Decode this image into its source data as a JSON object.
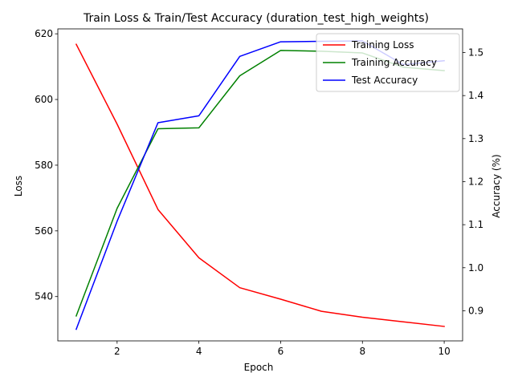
{
  "chart_data": {
    "type": "line",
    "title": "Train Loss & Train/Test Accuracy (duration_test_high_weights)",
    "xlabel": "Epoch",
    "ylabel_left": "Loss",
    "ylabel_right": "Accuracy (%)",
    "xlim": [
      0.55,
      10.45
    ],
    "ylim_left": [
      526.5,
      621.5
    ],
    "ylim_right": [
      0.83,
      1.555
    ],
    "x_ticks": [
      2,
      4,
      6,
      8,
      10
    ],
    "y_left_ticks": [
      540,
      560,
      580,
      600,
      620
    ],
    "y_right_ticks": [
      0.9,
      1.0,
      1.1,
      1.2,
      1.3,
      1.4,
      1.5
    ],
    "x_tick_labels": [
      "2",
      "4",
      "6",
      "8",
      "10"
    ],
    "y_left_tick_labels": [
      "540",
      "560",
      "580",
      "600",
      "620"
    ],
    "y_right_tick_labels": [
      "0.9",
      "1.0",
      "1.1",
      "1.2",
      "1.3",
      "1.4",
      "1.5"
    ],
    "x": [
      1,
      2,
      3,
      4,
      5,
      6,
      7,
      8,
      9,
      10
    ],
    "grid": false,
    "legend_position": "top-right",
    "series": [
      {
        "name": "Training Loss",
        "axis": "left",
        "color": "#ff0000",
        "values": [
          616.8,
          592.5,
          566.5,
          551.8,
          542.7,
          539.2,
          535.5,
          533.7,
          532.3,
          530.9
        ]
      },
      {
        "name": "Training Accuracy",
        "axis": "right",
        "color": "#008000",
        "values": [
          0.888,
          1.138,
          1.323,
          1.325,
          1.446,
          1.505,
          1.503,
          1.499,
          1.466,
          1.458
        ]
      },
      {
        "name": "Test Accuracy",
        "axis": "right",
        "color": "#0000ff",
        "values": [
          0.857,
          1.108,
          1.337,
          1.353,
          1.491,
          1.525,
          1.526,
          1.527,
          1.472,
          1.481
        ]
      }
    ]
  }
}
